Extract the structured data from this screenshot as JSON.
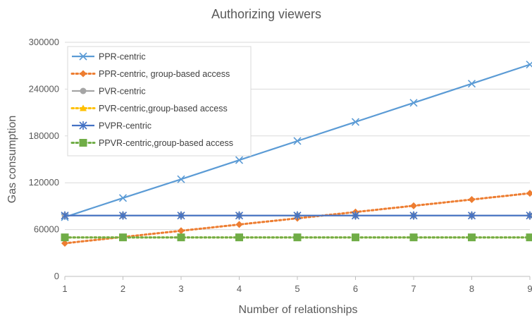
{
  "chart_data": {
    "type": "line",
    "title": "Authorizing viewers",
    "xlabel": "Number of relationships",
    "ylabel": "Gas consumption",
    "categories": [
      "1",
      "2",
      "3",
      "4",
      "5",
      "6",
      "7",
      "8",
      "9"
    ],
    "x": [
      1,
      2,
      3,
      4,
      5,
      6,
      7,
      8,
      9
    ],
    "ylim": [
      0,
      300000
    ],
    "yticks": [
      "0",
      "60000",
      "120000",
      "180000",
      "240000",
      "300000"
    ],
    "grid": true,
    "legend_position": "top-left",
    "series": [
      {
        "name": "PPR-centric",
        "color": "#5B9BD5",
        "marker": "x",
        "dash": "solid",
        "values": [
          76000,
          100500,
          124500,
          149000,
          173500,
          198000,
          222500,
          247000,
          271500
        ]
      },
      {
        "name": "PPR-centric, group-based access",
        "color": "#ED7D31",
        "marker": "diamond",
        "dash": "dotted",
        "values": [
          42500,
          50500,
          58500,
          66500,
          74500,
          82500,
          90500,
          98500,
          106500
        ]
      },
      {
        "name": "PVR-centric",
        "color": "#A5A5A5",
        "marker": "circle",
        "dash": "solid",
        "values": [
          78000,
          78000,
          78000,
          78000,
          78000,
          78000,
          78000,
          78000,
          78000
        ]
      },
      {
        "name": "PVR-centric,group-based access",
        "color": "#FFC000",
        "marker": "triangle",
        "dash": "dotted",
        "values": [
          50000,
          50000,
          50000,
          50000,
          50000,
          50000,
          50000,
          50000,
          50000
        ]
      },
      {
        "name": "PVPR-centric",
        "color": "#4472C4",
        "marker": "star",
        "dash": "solid",
        "values": [
          78000,
          78000,
          78000,
          78000,
          78000,
          78000,
          78000,
          78000,
          78000
        ]
      },
      {
        "name": "PPVR-centric,group-based access",
        "color": "#70AD47",
        "marker": "square",
        "dash": "dotted",
        "values": [
          50000,
          50000,
          50000,
          50000,
          50000,
          50000,
          50000,
          50000,
          50000
        ]
      }
    ]
  }
}
